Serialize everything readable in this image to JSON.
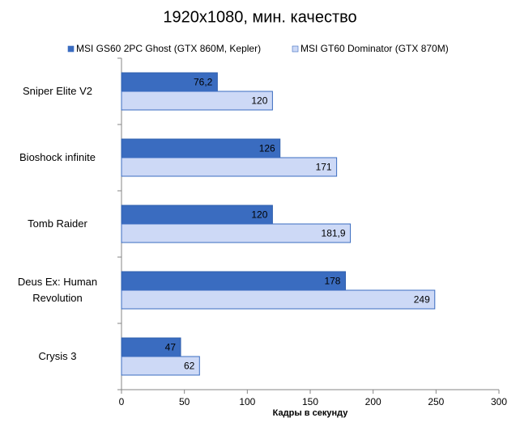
{
  "chart_data": {
    "type": "hbar",
    "title": "1920x1080, мин. качество",
    "x_label": "Кадры  в секунду",
    "categories": [
      "Sniper Elite V2",
      "Bioshock infinite",
      "Tomb Raider",
      "Deus Ex: Human Revolution",
      "Crysis 3"
    ],
    "series": [
      {
        "name": "MSI GS60 2PC Ghost (GTX 860M, Kepler)",
        "color": "#3a6cc0",
        "values": [
          76.2,
          126,
          120,
          178,
          47
        ],
        "value_labels": [
          "76,2",
          "126",
          "120",
          "178",
          "47"
        ]
      },
      {
        "name": "MSI GT60 Dominator (GTX 870M)",
        "color": "#cdd9f6",
        "values": [
          120,
          171,
          181.9,
          249,
          62
        ],
        "value_labels": [
          "120",
          "171",
          "181,9",
          "249",
          "62"
        ]
      }
    ],
    "xlim": [
      0,
      300
    ],
    "xticks": [
      0,
      50,
      100,
      150,
      200,
      250,
      300
    ],
    "grid": false
  }
}
